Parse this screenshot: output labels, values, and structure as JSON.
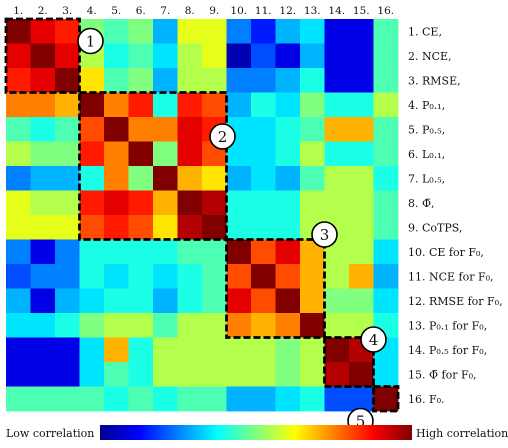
{
  "chart_data": {
    "type": "heatmap",
    "x_tick_labels": [
      "1.",
      "2.",
      "3.",
      "4.",
      "5.",
      "6.",
      "7.",
      "8.",
      "9.",
      "10.",
      "11.",
      "12.",
      "13.",
      "14.",
      "15.",
      "16."
    ],
    "row_labels": [
      "1. CE,",
      "2. NCE,",
      "3. RMSE,",
      "4. P₀.₁,",
      "5. P₀.₅,",
      "6. L₀.₁,",
      "7. L₀.₅,",
      "8. Φ̄,",
      "9. CoTPS,",
      "10. CE for F₀,",
      "11. NCE for F₀,",
      "12. RMSE for F₀,",
      "13. P₀.₁ for F₀,",
      "14. P₀.₅ for F₀,",
      "15. Φ̄ for F₀,",
      "16. F₀."
    ],
    "matrix": [
      [
        1.0,
        0.9,
        0.85,
        0.5,
        0.45,
        0.5,
        0.3,
        0.6,
        0.6,
        0.25,
        0.15,
        0.3,
        0.35,
        0.1,
        0.1,
        0.45
      ],
      [
        0.9,
        1.0,
        0.9,
        0.55,
        0.4,
        0.45,
        0.35,
        0.55,
        0.6,
        0.05,
        0.2,
        0.1,
        0.3,
        0.1,
        0.1,
        0.45
      ],
      [
        0.85,
        0.9,
        1.0,
        0.65,
        0.45,
        0.5,
        0.3,
        0.55,
        0.55,
        0.25,
        0.25,
        0.3,
        0.4,
        0.1,
        0.1,
        0.45
      ],
      [
        0.75,
        0.75,
        0.7,
        1.0,
        0.75,
        0.85,
        0.4,
        0.85,
        0.8,
        0.3,
        0.4,
        0.35,
        0.5,
        0.4,
        0.4,
        0.55
      ],
      [
        0.45,
        0.4,
        0.45,
        0.8,
        1.0,
        0.75,
        0.75,
        0.9,
        0.85,
        0.35,
        0.35,
        0.4,
        0.45,
        0.7,
        0.7,
        0.45
      ],
      [
        0.55,
        0.5,
        0.5,
        0.85,
        0.75,
        1.0,
        0.5,
        0.9,
        0.8,
        0.35,
        0.35,
        0.4,
        0.55,
        0.4,
        0.4,
        0.45
      ],
      [
        0.25,
        0.3,
        0.3,
        0.4,
        0.75,
        0.5,
        1.0,
        0.7,
        0.65,
        0.3,
        0.35,
        0.3,
        0.45,
        0.55,
        0.55,
        0.4
      ],
      [
        0.6,
        0.55,
        0.55,
        0.85,
        0.9,
        0.85,
        0.7,
        1.0,
        0.95,
        0.4,
        0.4,
        0.4,
        0.55,
        0.55,
        0.55,
        0.45
      ],
      [
        0.6,
        0.6,
        0.6,
        0.8,
        0.85,
        0.8,
        0.65,
        0.95,
        1.0,
        0.4,
        0.4,
        0.4,
        0.55,
        0.55,
        0.55,
        0.45
      ],
      [
        0.25,
        0.1,
        0.25,
        0.4,
        0.4,
        0.4,
        0.4,
        0.45,
        0.45,
        1.0,
        0.8,
        0.9,
        0.7,
        0.55,
        0.55,
        0.35
      ],
      [
        0.2,
        0.25,
        0.25,
        0.4,
        0.35,
        0.4,
        0.35,
        0.4,
        0.45,
        0.8,
        1.0,
        0.8,
        0.7,
        0.55,
        0.7,
        0.3
      ],
      [
        0.3,
        0.1,
        0.3,
        0.35,
        0.4,
        0.4,
        0.3,
        0.4,
        0.45,
        0.9,
        0.8,
        1.0,
        0.7,
        0.5,
        0.5,
        0.35
      ],
      [
        0.35,
        0.35,
        0.4,
        0.5,
        0.55,
        0.55,
        0.45,
        0.55,
        0.55,
        0.75,
        0.7,
        0.75,
        1.0,
        0.55,
        0.55,
        0.4
      ],
      [
        0.1,
        0.1,
        0.1,
        0.35,
        0.7,
        0.4,
        0.55,
        0.55,
        0.55,
        0.55,
        0.55,
        0.5,
        0.55,
        1.0,
        0.95,
        0.35
      ],
      [
        0.1,
        0.1,
        0.1,
        0.35,
        0.45,
        0.4,
        0.55,
        0.55,
        0.55,
        0.55,
        0.55,
        0.5,
        0.55,
        0.95,
        1.0,
        0.35
      ],
      [
        0.45,
        0.45,
        0.45,
        0.45,
        0.4,
        0.45,
        0.4,
        0.45,
        0.45,
        0.3,
        0.3,
        0.35,
        0.4,
        0.2,
        0.2,
        1.0
      ]
    ],
    "groups": [
      {
        "label": "1",
        "start": 1,
        "end": 3
      },
      {
        "label": "2",
        "start": 4,
        "end": 9
      },
      {
        "label": "3",
        "start": 10,
        "end": 13
      },
      {
        "label": "4",
        "start": 14,
        "end": 15
      },
      {
        "label": "5",
        "start": 16,
        "end": 16
      }
    ],
    "colorbar": {
      "low_label": "Low correlation",
      "high_label": "High correlation",
      "colormap": "jet",
      "range": [
        0,
        1
      ]
    }
  }
}
